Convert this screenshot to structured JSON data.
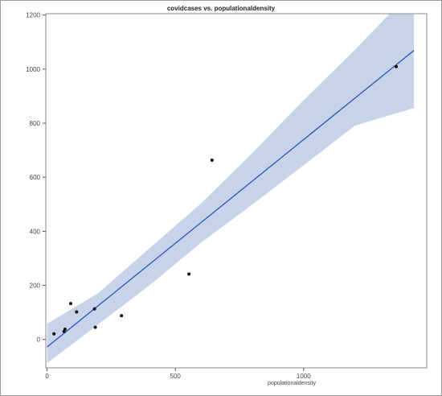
{
  "chart_data": {
    "type": "scatter",
    "title": "covidcases vs. populationaldensity",
    "xlabel": "populationaldensity",
    "ylabel": "",
    "xlim": [
      -5,
      1480
    ],
    "ylim": [
      -105,
      1205
    ],
    "x_ticks": [
      0,
      500,
      1000
    ],
    "y_ticks": [
      0,
      200,
      400,
      600,
      800,
      1000,
      1200
    ],
    "grid": false,
    "legend": "none",
    "points": [
      {
        "x": 27,
        "y": 21
      },
      {
        "x": 66,
        "y": 30
      },
      {
        "x": 70,
        "y": 38
      },
      {
        "x": 92,
        "y": 133
      },
      {
        "x": 115,
        "y": 102
      },
      {
        "x": 185,
        "y": 113
      },
      {
        "x": 188,
        "y": 45
      },
      {
        "x": 290,
        "y": 88
      },
      {
        "x": 553,
        "y": 242
      },
      {
        "x": 643,
        "y": 663
      },
      {
        "x": 1361,
        "y": 1009
      }
    ],
    "fit": {
      "x": [
        0,
        1430
      ],
      "y": [
        -28,
        1069
      ]
    },
    "confidence_band": {
      "x": [
        0,
        200,
        400,
        600,
        800,
        1000,
        1200,
        1430
      ],
      "upper": [
        58,
        172,
        338,
        503,
        689,
        885,
        1071,
        1298
      ],
      "lower": [
        -88,
        56,
        201,
        358,
        499,
        644,
        791,
        856
      ]
    },
    "colors": {
      "fit_line": "#2a52b8",
      "band": "#c6d3e8",
      "points": "#111111"
    }
  }
}
